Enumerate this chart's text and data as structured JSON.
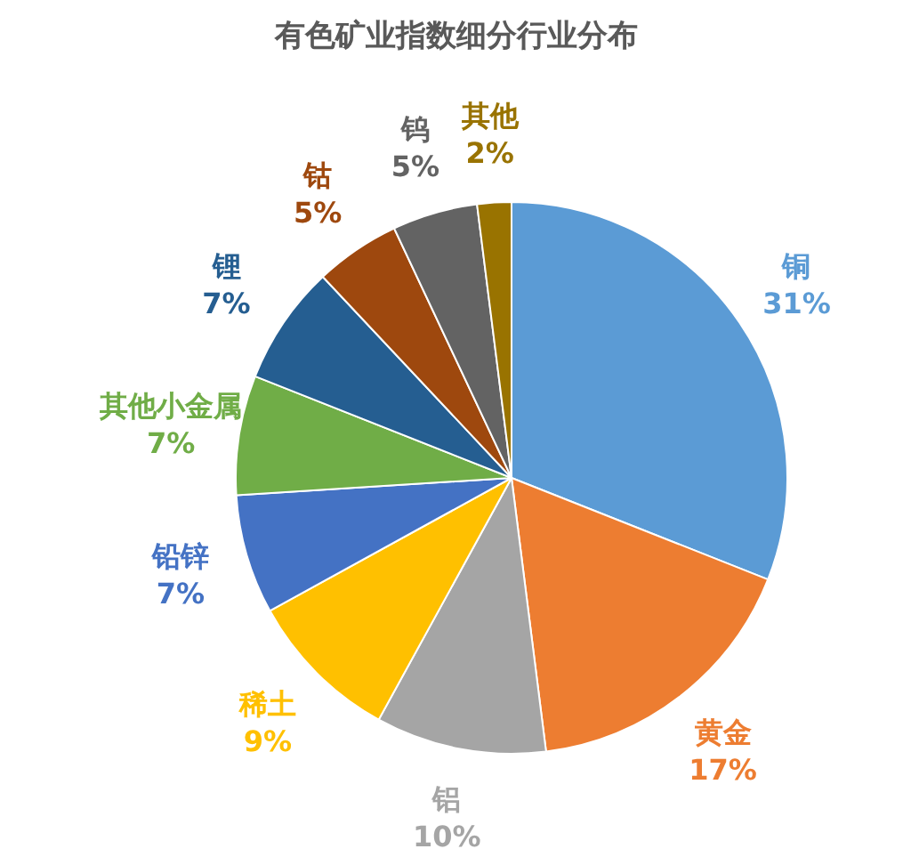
{
  "chart_data": {
    "type": "pie",
    "title": "有色矿业指数细分行业分布",
    "categories": [
      "铜",
      "黄金",
      "铝",
      "稀土",
      "铅锌",
      "其他小金属",
      "锂",
      "钴",
      "钨",
      "其他"
    ],
    "values": [
      31,
      17,
      10,
      9,
      7,
      7,
      7,
      5,
      5,
      2
    ],
    "colors": [
      "#5b9bd5",
      "#ed7d31",
      "#a5a5a5",
      "#ffc000",
      "#4472c4",
      "#70ad47",
      "#255e91",
      "#9e480e",
      "#636363",
      "#997300"
    ],
    "value_labels": [
      "31%",
      "17%",
      "10%",
      "9%",
      "7%",
      "7%",
      "7%",
      "5%",
      "5%",
      "2%"
    ],
    "legend": false
  }
}
